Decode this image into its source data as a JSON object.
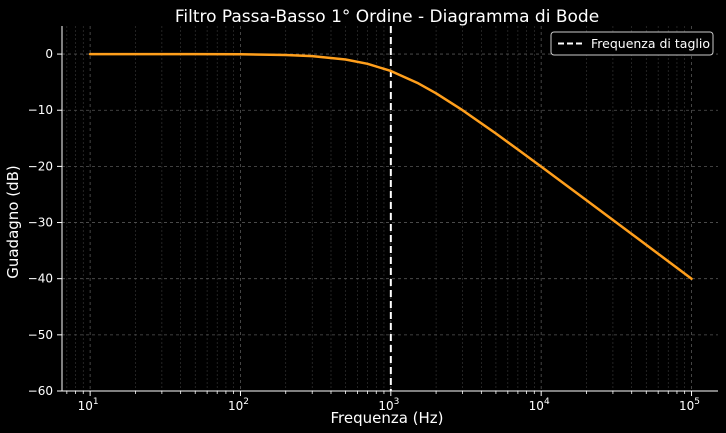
{
  "chart_data": {
    "type": "line",
    "title": "Filtro Passa-Basso 1° Ordine - Diagramma di Bode",
    "xlabel": "Frequenza (Hz)",
    "ylabel": "Guadagno (dB)",
    "xscale": "log",
    "xlim": [
      6.5,
      150000
    ],
    "ylim": [
      -60,
      5
    ],
    "x_ticks": [
      10,
      100,
      1000,
      10000,
      100000
    ],
    "x_tick_labels": [
      [
        "10",
        "1"
      ],
      [
        "10",
        "2"
      ],
      [
        "10",
        "3"
      ],
      [
        "10",
        "4"
      ],
      [
        "10",
        "5"
      ]
    ],
    "y_ticks": [
      0,
      -10,
      -20,
      -30,
      -40,
      -50,
      -60
    ],
    "y_tick_labels": [
      "0",
      "−10",
      "−20",
      "−30",
      "−40",
      "−50",
      "−60"
    ],
    "grid": true,
    "legend_position": "top-right",
    "series": [
      {
        "color": "#ff9f1c",
        "x": [
          10,
          20,
          50,
          100,
          200,
          300,
          500,
          700,
          1000,
          1500,
          2000,
          3000,
          5000,
          7000,
          10000,
          20000,
          50000,
          100000
        ],
        "y": [
          0,
          0,
          -0.01,
          -0.04,
          -0.17,
          -0.37,
          -0.97,
          -1.73,
          -3.01,
          -5.12,
          -6.99,
          -10,
          -14.15,
          -16.99,
          -20.04,
          -26.03,
          -33.98,
          -40
        ]
      }
    ],
    "annotations": [
      {
        "type": "vline",
        "x": 1000,
        "label": "Frequenza di taglio",
        "color": "#ffffff",
        "style": "dashed"
      }
    ]
  }
}
